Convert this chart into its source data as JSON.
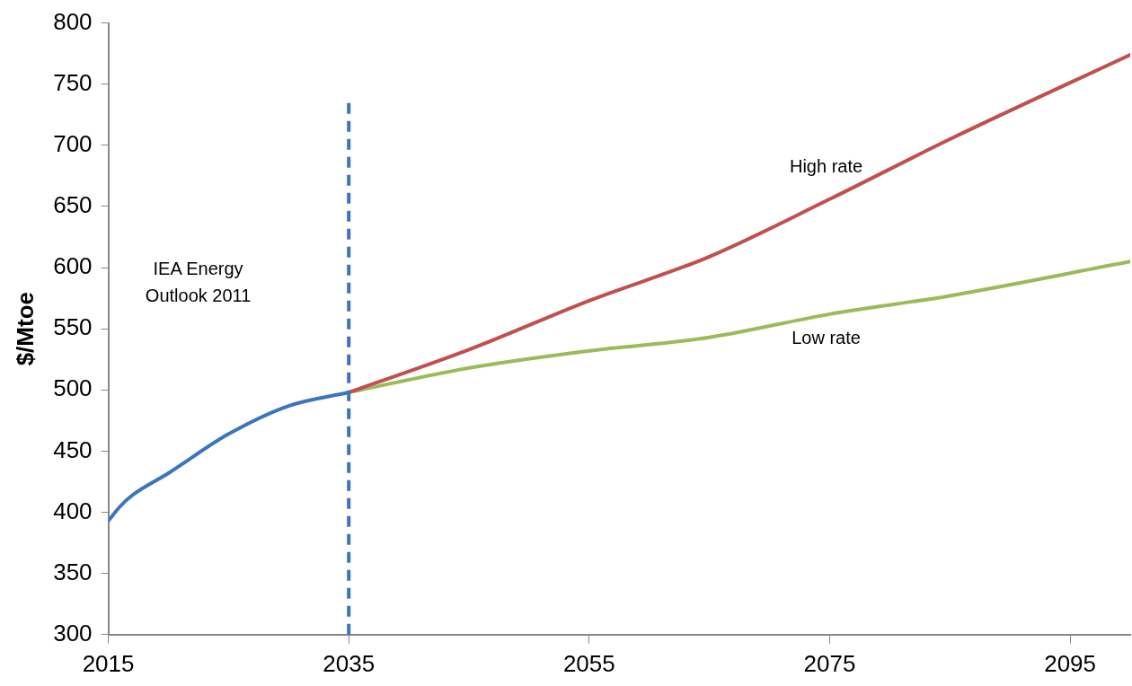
{
  "chart_data": {
    "type": "line",
    "ylabel": "$/Mtoe",
    "xlim": [
      2015,
      2100
    ],
    "xticks": [
      2015,
      2035,
      2055,
      2075,
      2095
    ],
    "ylim": [
      300,
      800
    ],
    "yticks": [
      300,
      350,
      400,
      450,
      500,
      550,
      600,
      650,
      700,
      750,
      800
    ],
    "grid": false,
    "legend": false,
    "marker": "none",
    "series": [
      {
        "color": "#3b75bd",
        "x": [
          2015,
          2016,
          2017,
          2020,
          2025,
          2030,
          2035
        ],
        "values": [
          393,
          405,
          414,
          432,
          464,
          487,
          498
        ]
      },
      {
        "name": "High rate",
        "color": "#c0504d",
        "x": [
          2035,
          2045,
          2055,
          2065,
          2075,
          2085,
          2100
        ],
        "values": [
          498,
          533,
          573,
          609,
          656,
          705,
          774
        ]
      },
      {
        "name": "Low rate",
        "color": "#9bbb59",
        "x": [
          2035,
          2045,
          2055,
          2065,
          2075,
          2085,
          2100
        ],
        "values": [
          498,
          518,
          532,
          543,
          562,
          577,
          605
        ]
      }
    ],
    "ref_lines": [
      {
        "axis": "x",
        "value": 2035,
        "color": "#3b75bd",
        "line_style": "dashed"
      }
    ],
    "annotations": [
      "IEA Energy Outlook 2011"
    ]
  }
}
